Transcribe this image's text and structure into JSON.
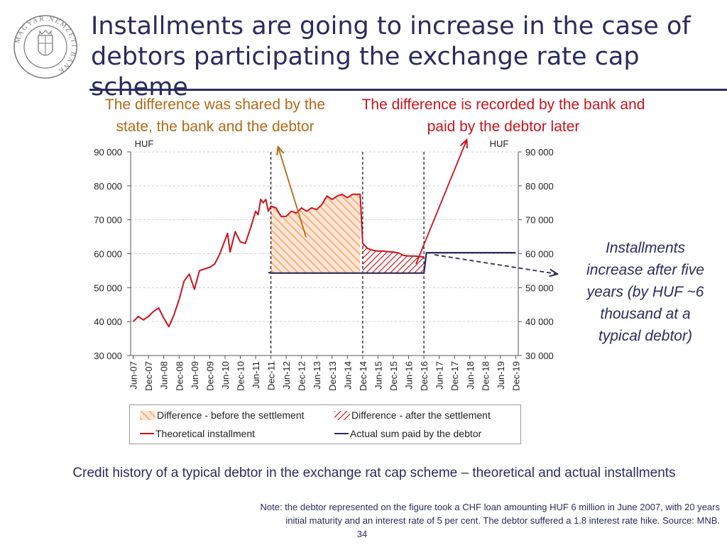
{
  "slide": {
    "title_line1": "Installments are going to increase in the case of",
    "title_line2": "debtors participating the exchange rate cap scheme",
    "callout_left_line1": "The difference was shared by the",
    "callout_left_line2": "state, the bank and the debtor",
    "callout_right_line1": "The difference is recorded by the bank and",
    "callout_right_line2": "paid by the debtor later",
    "side_note_lines": [
      "Installments",
      "increase after five",
      "years (by HUF ~6",
      "thousand at a",
      "typical debtor)"
    ],
    "caption": "Credit history of a typical debtor in the exchange rat cap scheme – theoretical and actual installments",
    "note_line1": "Note: the debtor represented on the figure took a CHF loan amounting HUF 6 million in June 2007, with 20 years",
    "note_line2": "initial maturity and an interest rate of 5 per cent. The debtor suffered a 1.8 interest rate hike. Source: MNB.",
    "page_number": "34",
    "logo_text": "MAGYAR NEMZETI BANK"
  },
  "colors": {
    "title": "#2b2b5c",
    "callout_left": "#b06a18",
    "callout_right": "#c8141e",
    "theoretical": "#c8141e",
    "actual": "#2b2b5c",
    "before_hatch": "#f4b183",
    "after_hatch": "#c8141e"
  },
  "chart_data": {
    "type": "line",
    "y_unit_left": "HUF",
    "y_unit_right": "HUF",
    "ylim": [
      30000,
      90000
    ],
    "yticks": [
      30000,
      40000,
      50000,
      60000,
      70000,
      80000,
      90000
    ],
    "ytick_labels": [
      "30 000",
      "40 000",
      "50 000",
      "60 000",
      "70 000",
      "80 000",
      "90 000"
    ],
    "xtick_labels": [
      "Jun-07",
      "Dec-07",
      "Jun-08",
      "Dec-08",
      "Jun-09",
      "Dec-09",
      "Jun-10",
      "Dec-10",
      "Jun-11",
      "Dec-11",
      "Jun-12",
      "Dec-12",
      "Jun-13",
      "Dec-13",
      "Jun-14",
      "Dec-14",
      "Jun-15",
      "Dec-15",
      "Jun-16",
      "Dec-16",
      "Jun-17",
      "Dec-17",
      "Jun-18",
      "Dec-18",
      "Jun-19",
      "Dec-19"
    ],
    "grid": "horizontal dashed",
    "vertical_markers": [
      "Dec-11",
      "Dec-14",
      "Dec-16"
    ],
    "series": [
      {
        "name": "Theoretical installment",
        "style": "line",
        "points": [
          [
            "Jun-07",
            40000
          ],
          [
            "Aug-07",
            41500
          ],
          [
            "Oct-07",
            40500
          ],
          [
            "Dec-07",
            41500
          ],
          [
            "Feb-08",
            43000
          ],
          [
            "Apr-08",
            44000
          ],
          [
            "Jun-08",
            41000
          ],
          [
            "Aug-08",
            38500
          ],
          [
            "Oct-08",
            42000
          ],
          [
            "Dec-08",
            46500
          ],
          [
            "Feb-09",
            52000
          ],
          [
            "Apr-09",
            54000
          ],
          [
            "Jun-09",
            49500
          ],
          [
            "Aug-09",
            55000
          ],
          [
            "Oct-09",
            55500
          ],
          [
            "Dec-09",
            56000
          ],
          [
            "Feb-10",
            57000
          ],
          [
            "Apr-10",
            60000
          ],
          [
            "Jun-10",
            64000
          ],
          [
            "Jul-10",
            66000
          ],
          [
            "Aug-10",
            60500
          ],
          [
            "Oct-10",
            66500
          ],
          [
            "Dec-10",
            63500
          ],
          [
            "Feb-11",
            63000
          ],
          [
            "Apr-11",
            67500
          ],
          [
            "Jun-11",
            72500
          ],
          [
            "Jul-11",
            71500
          ],
          [
            "Aug-11",
            76000
          ],
          [
            "Sep-11",
            75000
          ],
          [
            "Oct-11",
            76000
          ],
          [
            "Nov-11",
            72500
          ],
          [
            "Dec-11",
            74000
          ],
          [
            "Feb-12",
            73500
          ],
          [
            "Apr-12",
            71000
          ],
          [
            "Jun-12",
            71000
          ],
          [
            "Aug-12",
            72500
          ],
          [
            "Oct-12",
            72000
          ],
          [
            "Dec-12",
            73500
          ],
          [
            "Feb-13",
            72500
          ],
          [
            "Apr-13",
            73500
          ],
          [
            "Jun-13",
            73000
          ],
          [
            "Aug-13",
            74500
          ],
          [
            "Oct-13",
            77000
          ],
          [
            "Dec-13",
            76000
          ],
          [
            "Feb-14",
            77000
          ],
          [
            "Apr-14",
            77500
          ],
          [
            "Jun-14",
            76500
          ],
          [
            "Aug-14",
            77500
          ],
          [
            "Oct-14",
            77500
          ],
          [
            "Nov-14",
            77500
          ],
          [
            "Dec-14",
            63000
          ],
          [
            "Feb-15",
            61500
          ],
          [
            "Apr-15",
            61000
          ],
          [
            "Jun-15",
            60800
          ],
          [
            "Aug-15",
            60800
          ],
          [
            "Oct-15",
            60600
          ],
          [
            "Dec-15",
            60500
          ],
          [
            "Feb-16",
            60200
          ],
          [
            "Apr-16",
            59500
          ],
          [
            "Jun-16",
            59300
          ],
          [
            "Aug-16",
            59300
          ],
          [
            "Oct-16",
            59200
          ],
          [
            "Dec-16",
            59000
          ]
        ]
      },
      {
        "name": "Actual sum paid by the debtor",
        "style": "line",
        "points": [
          [
            "Nov-11",
            54500
          ],
          [
            "Dec-11",
            54300
          ],
          [
            "Dec-14",
            54300
          ],
          [
            "Dec-16",
            54300
          ],
          [
            "Jan-17",
            60300
          ],
          [
            "Dec-19",
            60300
          ]
        ]
      },
      {
        "name": "Difference - before the settlement",
        "style": "hatched-area",
        "range": [
          "Dec-11",
          "Dec-14"
        ]
      },
      {
        "name": "Difference - after the settlement",
        "style": "hatched-area",
        "range": [
          "Dec-14",
          "Dec-16"
        ]
      }
    ],
    "legend": {
      "placement": "bottom",
      "columns": 2
    }
  }
}
